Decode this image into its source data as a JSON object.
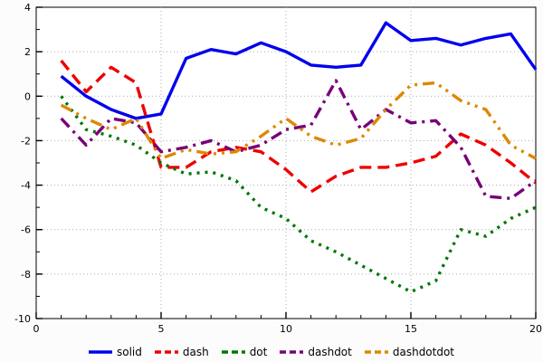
{
  "figure": {
    "background": "#fcfcfc",
    "plot_background": "#ffffff",
    "border_color": "#000000",
    "grid_color": "#aaaaaa"
  },
  "chart_data": {
    "type": "line",
    "title": "",
    "xlabel": "",
    "ylabel": "",
    "xlim": [
      0,
      20
    ],
    "ylim": [
      -10,
      4
    ],
    "x_major_ticks": [
      0,
      5,
      10,
      15,
      20
    ],
    "y_major_ticks": [
      -10,
      -8,
      -6,
      -4,
      -2,
      0,
      2,
      4
    ],
    "grid": true,
    "legend_position": "bottom-center",
    "x": [
      1,
      2,
      3,
      4,
      5,
      6,
      7,
      8,
      9,
      10,
      11,
      12,
      13,
      14,
      15,
      16,
      17,
      18,
      19,
      20
    ],
    "series": [
      {
        "name": "solid",
        "color": "#0000ee",
        "dash": "solid",
        "values": [
          0.9,
          0.0,
          -0.6,
          -1.0,
          -0.8,
          1.7,
          2.1,
          1.9,
          2.4,
          2.0,
          1.4,
          1.3,
          1.4,
          3.3,
          2.5,
          2.6,
          2.3,
          2.6,
          2.8,
          1.2
        ]
      },
      {
        "name": "dash",
        "color": "#ee0000",
        "dash": "dash",
        "values": [
          1.6,
          0.2,
          1.3,
          0.6,
          -3.2,
          -3.2,
          -2.5,
          -2.3,
          -2.5,
          -3.3,
          -4.3,
          -3.6,
          -3.2,
          -3.2,
          -3.0,
          -2.7,
          -1.7,
          -2.2,
          -3.0,
          -3.9
        ]
      },
      {
        "name": "dot",
        "color": "#007700",
        "dash": "dot",
        "values": [
          0.0,
          -1.5,
          -1.8,
          -2.2,
          -3.0,
          -3.5,
          -3.4,
          -3.8,
          -5.0,
          -5.5,
          -6.5,
          -7.0,
          -7.6,
          -8.2,
          -8.8,
          -8.3,
          -6.0,
          -6.3,
          -5.5,
          -5.0
        ]
      },
      {
        "name": "dashdot",
        "color": "#770077",
        "dash": "dashdot",
        "values": [
          -1.0,
          -2.2,
          -1.0,
          -1.2,
          -2.5,
          -2.3,
          -2.0,
          -2.5,
          -2.2,
          -1.5,
          -1.3,
          0.7,
          -1.5,
          -0.6,
          -1.2,
          -1.1,
          -2.3,
          -4.5,
          -4.6,
          -3.8
        ]
      },
      {
        "name": "dashdotdot",
        "color": "#dd8800",
        "dash": "dashdotdot",
        "values": [
          -0.4,
          -1.0,
          -1.5,
          -1.0,
          -2.8,
          -2.4,
          -2.6,
          -2.5,
          -1.8,
          -1.0,
          -1.8,
          -2.2,
          -1.9,
          -0.6,
          0.5,
          0.6,
          -0.2,
          -0.6,
          -2.2,
          -2.8
        ]
      }
    ]
  },
  "legend": {
    "labels": [
      "solid",
      "dash",
      "dot",
      "dashdot",
      "dashdotdot"
    ]
  }
}
